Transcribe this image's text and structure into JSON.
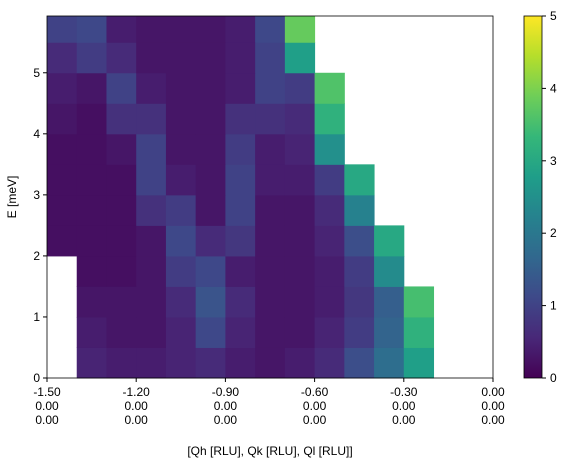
{
  "chart_data": {
    "type": "heatmap",
    "xlabel": "[Qh [RLU], Qk [RLU], Ql [RLU]]",
    "ylabel": "E [meV]",
    "xlim": [
      -1.5,
      0.0
    ],
    "ylim": [
      0,
      5.93
    ],
    "xticks": [
      {
        "value": -1.5,
        "label": "-1.50\n0.00\n0.00"
      },
      {
        "value": -1.2,
        "label": "-1.20\n0.00\n0.00"
      },
      {
        "value": -0.9,
        "label": "-0.90\n0.00\n0.00"
      },
      {
        "value": -0.6,
        "label": "-0.60\n0.00\n0.00"
      },
      {
        "value": -0.3,
        "label": "-0.30\n0.00\n0.00"
      },
      {
        "value": 0.0,
        "label": "0.00\n0.00\n0.00"
      }
    ],
    "yticks": [
      0,
      1,
      2,
      3,
      4,
      5
    ],
    "xbins": [
      -1.5,
      -1.4,
      -1.3,
      -1.2,
      -1.1,
      -1.0,
      -0.9,
      -0.8,
      -0.7,
      -0.6,
      -0.5,
      -0.4,
      -0.3,
      -0.2
    ],
    "ybins": [
      0,
      0.5,
      1,
      1.5,
      2,
      2.5,
      3,
      3.5,
      4,
      4.5,
      5,
      5.5,
      5.93
    ],
    "z": [
      [
        null,
        0.5,
        0.4,
        0.4,
        0.5,
        0.6,
        0.4,
        0.3,
        0.4,
        0.6,
        1.2,
        1.8,
        2.8
      ],
      [
        null,
        0.4,
        0.3,
        0.3,
        0.5,
        1.1,
        0.5,
        0.3,
        0.3,
        0.5,
        0.9,
        1.6,
        3.2
      ],
      [
        null,
        0.3,
        0.3,
        0.3,
        0.6,
        1.3,
        0.6,
        0.3,
        0.3,
        0.4,
        0.8,
        1.5,
        3.5
      ],
      [
        null,
        0.2,
        0.2,
        0.3,
        0.9,
        1.1,
        0.4,
        0.3,
        0.3,
        0.4,
        0.9,
        2.4,
        null
      ],
      [
        0.2,
        0.2,
        0.2,
        0.3,
        1.1,
        0.6,
        0.8,
        0.3,
        0.3,
        0.5,
        1.2,
        3.0,
        null
      ],
      [
        0.2,
        0.2,
        0.2,
        0.7,
        0.9,
        0.3,
        1.0,
        0.3,
        0.3,
        0.6,
        2.2,
        null,
        null
      ],
      [
        0.2,
        0.2,
        0.2,
        1.0,
        0.4,
        0.3,
        1.0,
        0.4,
        0.4,
        0.9,
        3.0,
        null,
        null
      ],
      [
        0.2,
        0.2,
        0.3,
        1.0,
        0.3,
        0.3,
        0.9,
        0.4,
        0.5,
        2.5,
        null,
        null,
        null
      ],
      [
        0.3,
        0.2,
        0.7,
        0.7,
        0.3,
        0.3,
        0.7,
        0.7,
        0.6,
        3.2,
        null,
        null,
        null
      ],
      [
        0.4,
        0.3,
        1.0,
        0.4,
        0.3,
        0.3,
        0.4,
        1.0,
        0.9,
        3.6,
        null,
        null,
        null
      ],
      [
        0.6,
        0.9,
        0.6,
        0.3,
        0.3,
        0.3,
        0.4,
        1.0,
        2.8,
        null,
        null,
        null,
        null
      ],
      [
        1.0,
        1.1,
        0.4,
        0.3,
        0.3,
        0.3,
        0.4,
        1.1,
        3.8,
        null,
        null,
        null,
        null
      ]
    ],
    "colormap": "viridis",
    "colorbar": {
      "lim": [
        0,
        5
      ],
      "ticks": [
        0,
        1,
        2,
        3,
        4,
        5
      ]
    }
  }
}
